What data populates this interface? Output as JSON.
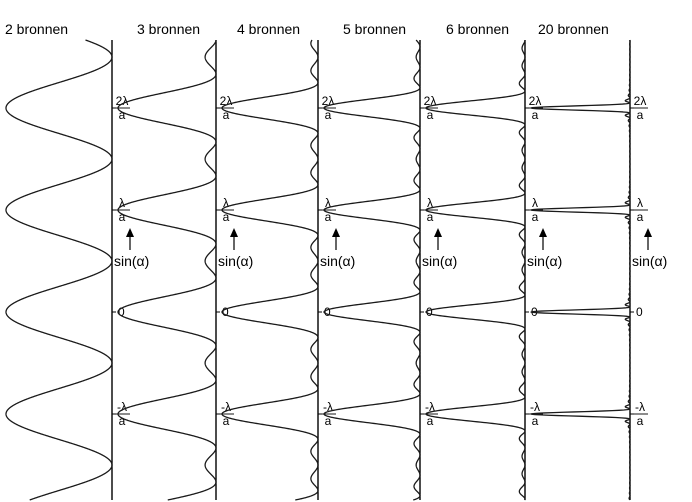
{
  "panels": [
    {
      "title": "2 bronnen",
      "sources": 2
    },
    {
      "title": "3 bronnen",
      "sources": 3
    },
    {
      "title": "4 bronnen",
      "sources": 4
    },
    {
      "title": "5 bronnen",
      "sources": 5
    },
    {
      "title": "6 bronnen",
      "sources": 6
    },
    {
      "title": "20 bronnen",
      "sources": 20
    }
  ],
  "tick_labels": [
    {
      "num": "2λ",
      "den": "a",
      "value": 2
    },
    {
      "num": "λ",
      "den": "a",
      "value": 1
    },
    {
      "num": "0",
      "den": "",
      "value": 0
    },
    {
      "num": "-λ",
      "den": "a",
      "value": -1
    }
  ],
  "arrow_label": "sin(α)"
}
